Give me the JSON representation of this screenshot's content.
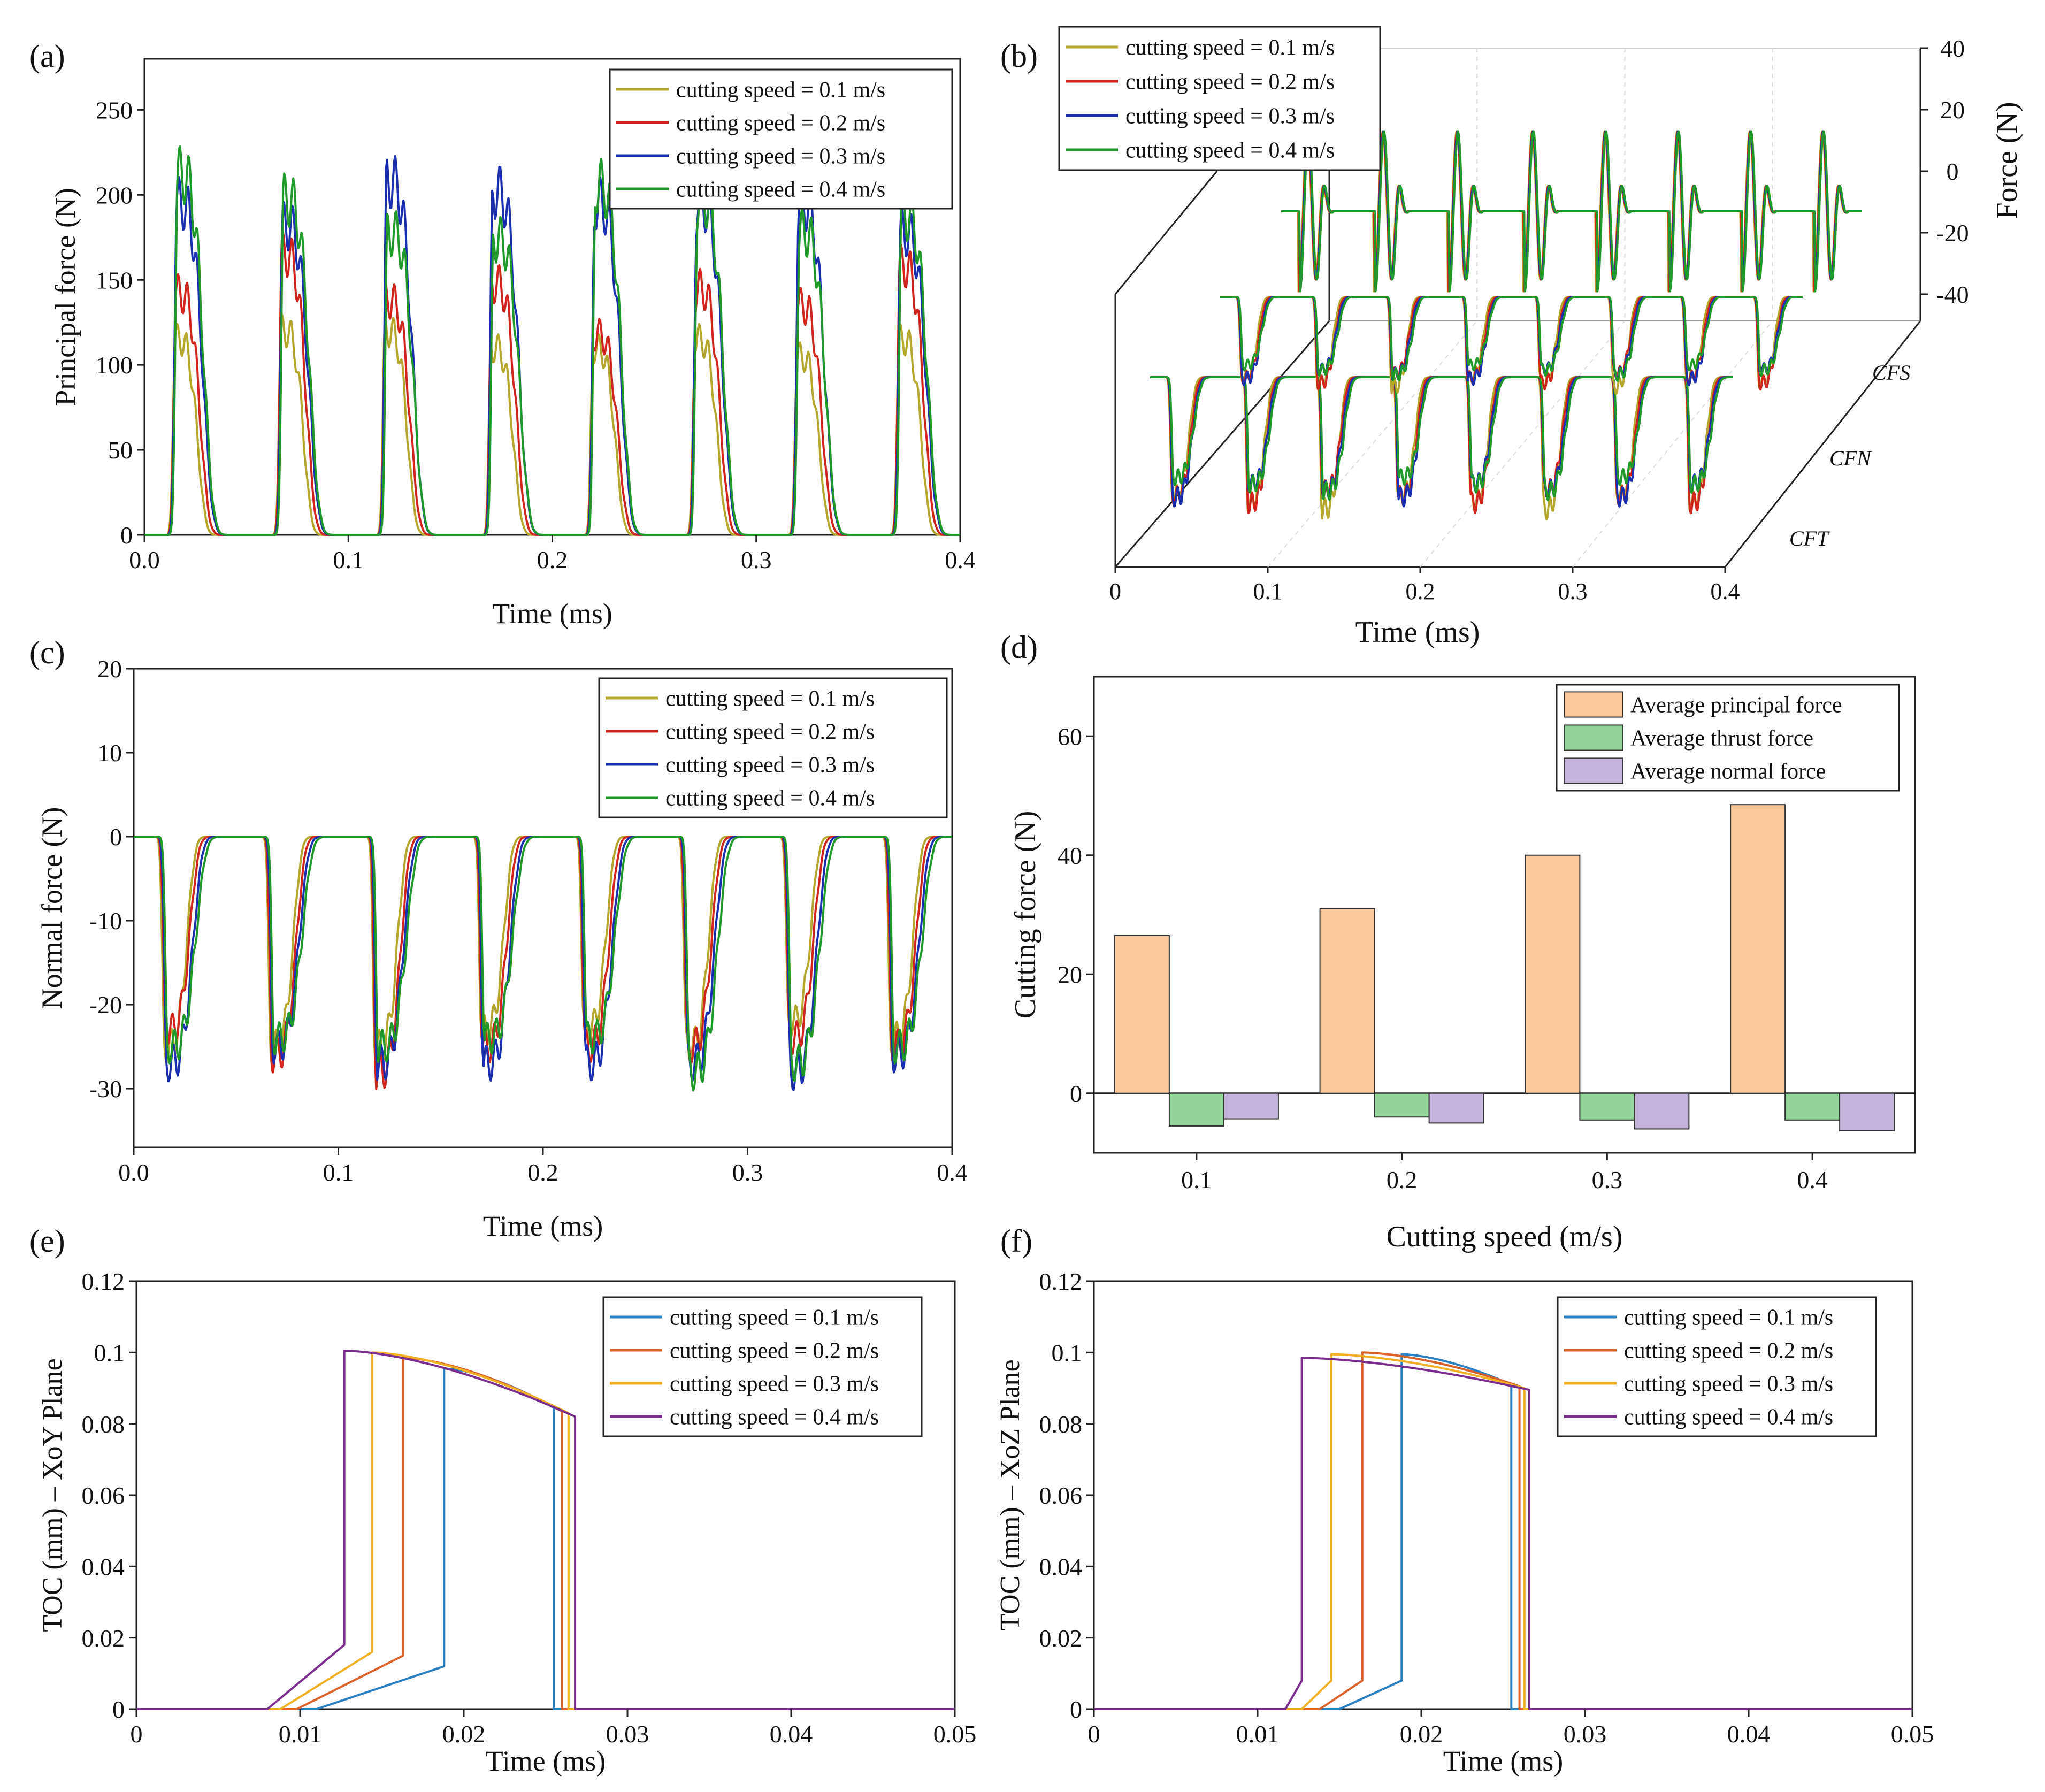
{
  "panels": {
    "a": {
      "label": "(a)"
    },
    "b": {
      "label": "(b)"
    },
    "c": {
      "label": "(c)"
    },
    "d": {
      "label": "(d)"
    },
    "e": {
      "label": "(e)"
    },
    "f": {
      "label": "(f)"
    }
  },
  "colors": {
    "speed_force": [
      "#b5a72c",
      "#d0241c",
      "#1a2fb0",
      "#1f9a2a"
    ],
    "speed_toc": [
      "#2a7fc0",
      "#d9622b",
      "#f2b124",
      "#7b2d8e"
    ],
    "bars": [
      "#fbc89b",
      "#92d49a",
      "#c4b4dc"
    ]
  },
  "chart_data": [
    {
      "id": "a",
      "type": "line",
      "title": "",
      "xlabel": "Time (ms)",
      "ylabel": "Principal force (N)",
      "xlim": [
        0,
        0.4
      ],
      "ylim": [
        0,
        280
      ],
      "xticks": [
        "0.0",
        "0.1",
        "0.2",
        "0.3",
        "0.4"
      ],
      "yticks": [
        "0",
        "50",
        "100",
        "150",
        "200",
        "250"
      ],
      "legend_position": "top-right",
      "peak_times": [
        0.015,
        0.067,
        0.118,
        0.17,
        0.22,
        0.27,
        0.32,
        0.37
      ],
      "series": [
        {
          "name": "cutting speed = 0.1 m/s",
          "peak_values": [
            115,
            120,
            120,
            110,
            110,
            115,
            105,
            115
          ]
        },
        {
          "name": "cutting speed = 0.2 m/s",
          "peak_values": [
            142,
            165,
            138,
            148,
            118,
            145,
            135,
            158
          ]
        },
        {
          "name": "cutting speed = 0.3 m/s",
          "peak_values": [
            195,
            182,
            208,
            202,
            195,
            195,
            195,
            178
          ]
        },
        {
          "name": "cutting speed = 0.4 m/s",
          "peak_values": [
            212,
            197,
            178,
            174,
            205,
            198,
            178,
            188
          ]
        }
      ]
    },
    {
      "id": "b",
      "type": "line",
      "title": "",
      "xlabel": "Time (ms)",
      "zlabel": "Force (N)",
      "xlim": [
        0,
        0.4
      ],
      "zlim": [
        -40,
        40
      ],
      "xticks": [
        "0",
        "0.1",
        "0.2",
        "0.3",
        "0.4"
      ],
      "zticks": [
        "40",
        "20",
        "0",
        "-20",
        "-40"
      ],
      "depth_labels": [
        "CFS",
        "CFN",
        "CFT"
      ],
      "legend_position": "top-left",
      "peak_times": [
        0.015,
        0.067,
        0.118,
        0.17,
        0.22,
        0.27,
        0.32,
        0.37
      ],
      "series": [
        {
          "name": "cutting speed = 0.1 m/s"
        },
        {
          "name": "cutting speed = 0.2 m/s"
        },
        {
          "name": "cutting speed = 0.3 m/s"
        },
        {
          "name": "cutting speed = 0.4 m/s"
        }
      ]
    },
    {
      "id": "c",
      "type": "line",
      "title": "",
      "xlabel": "Time (ms)",
      "ylabel": "Normal force (N)",
      "xlim": [
        0,
        0.4
      ],
      "ylim": [
        -37,
        20
      ],
      "xticks": [
        "0.0",
        "0.1",
        "0.2",
        "0.3",
        "0.4"
      ],
      "yticks": [
        "20",
        "10",
        "0",
        "-10",
        "-20",
        "-30"
      ],
      "legend_position": "top-right",
      "peak_times": [
        0.015,
        0.067,
        0.118,
        0.17,
        0.22,
        0.27,
        0.32,
        0.37
      ],
      "series": [
        {
          "name": "cutting speed = 0.1 m/s",
          "min_values": [
            -25,
            -25,
            -25,
            -23,
            -23,
            -25,
            -22,
            -24
          ]
        },
        {
          "name": "cutting speed = 0.2 m/s",
          "min_values": [
            -23,
            -26,
            -28,
            -25,
            -25,
            -25,
            -24,
            -25
          ]
        },
        {
          "name": "cutting speed = 0.3 m/s",
          "min_values": [
            -27,
            -25,
            -27,
            -27,
            -27,
            -27,
            -28,
            -26
          ]
        },
        {
          "name": "cutting speed = 0.4 m/s",
          "min_values": [
            -25,
            -24,
            -25,
            -24,
            -24,
            -28,
            -27,
            -25
          ]
        }
      ]
    },
    {
      "id": "d",
      "type": "bar",
      "title": "",
      "xlabel": "Cutting speed (m/s)",
      "ylabel": "Cutting force (N)",
      "categories": [
        "0.1",
        "0.2",
        "0.3",
        "0.4"
      ],
      "ylim": [
        -10,
        70
      ],
      "yticks": [
        "0",
        "20",
        "40",
        "60"
      ],
      "legend_position": "top-right",
      "series": [
        {
          "name": "Average principal  force",
          "values": [
            26.5,
            31,
            40,
            48.5
          ]
        },
        {
          "name": "Average thrust force",
          "values": [
            -5.5,
            -4,
            -4.5,
            -4.5
          ]
        },
        {
          "name": "Average normal force",
          "values": [
            -4.3,
            -5,
            -6,
            -6.3
          ]
        }
      ]
    },
    {
      "id": "e",
      "type": "line",
      "title": "",
      "xlabel": "Time  (ms)",
      "ylabel": "TOC (mm) – XoY Plane",
      "xlim": [
        0,
        0.05
      ],
      "ylim": [
        0,
        0.12
      ],
      "xticks": [
        "0",
        "0.01",
        "0.02",
        "0.03",
        "0.04",
        "0.05"
      ],
      "yticks": [
        "0",
        "0.02",
        "0.04",
        "0.06",
        "0.08",
        "0.1",
        "0.12"
      ],
      "legend_position": "top-right",
      "series": [
        {
          "name": "cutting speed = 0.1 m/s",
          "x": [
            0,
            0.011,
            0.0188,
            0.0188,
            0.0255,
            0.0255,
            0.05
          ],
          "y": [
            0,
            0,
            0.012,
            0.0955,
            0.0845,
            0,
            0
          ]
        },
        {
          "name": "cutting speed = 0.2 m/s",
          "x": [
            0,
            0.0098,
            0.0163,
            0.0163,
            0.026,
            0.026,
            0.05
          ],
          "y": [
            0,
            0,
            0.015,
            0.0985,
            0.0835,
            0,
            0
          ]
        },
        {
          "name": "cutting speed = 0.3 m/s",
          "x": [
            0,
            0.0088,
            0.0144,
            0.0144,
            0.0264,
            0.0264,
            0.05
          ],
          "y": [
            0,
            0,
            0.016,
            0.1,
            0.083,
            0,
            0
          ]
        },
        {
          "name": "cutting speed = 0.4 m/s",
          "x": [
            0,
            0.008,
            0.0127,
            0.0127,
            0.0268,
            0.0268,
            0.05
          ],
          "y": [
            0,
            0,
            0.018,
            0.1005,
            0.082,
            0,
            0
          ]
        }
      ]
    },
    {
      "id": "f",
      "type": "line",
      "title": "",
      "xlabel": "Time (ms)",
      "ylabel": "TOC (mm) – XoZ Plane",
      "xlim": [
        0,
        0.05
      ],
      "ylim": [
        0,
        0.12
      ],
      "xticks": [
        "0",
        "0.01",
        "0.02",
        "0.03",
        "0.04",
        "0.05"
      ],
      "yticks": [
        "0",
        "0.02",
        "0.04",
        "0.06",
        "0.08",
        "0.1",
        "0.12"
      ],
      "legend_position": "top-right",
      "series": [
        {
          "name": "cutting speed = 0.1 m/s",
          "x": [
            0,
            0.015,
            0.0188,
            0.0188,
            0.0255,
            0.0255,
            0.05
          ],
          "y": [
            0,
            0,
            0.008,
            0.0995,
            0.091,
            0,
            0
          ]
        },
        {
          "name": "cutting speed = 0.2 m/s",
          "x": [
            0,
            0.0138,
            0.0164,
            0.0164,
            0.026,
            0.026,
            0.05
          ],
          "y": [
            0,
            0,
            0.008,
            0.1,
            0.0905,
            0,
            0
          ]
        },
        {
          "name": "cutting speed = 0.3 m/s",
          "x": [
            0,
            0.0127,
            0.0145,
            0.0145,
            0.0263,
            0.0263,
            0.05
          ],
          "y": [
            0,
            0,
            0.008,
            0.0995,
            0.09,
            0,
            0
          ]
        },
        {
          "name": "cutting speed = 0.4 m/s",
          "x": [
            0,
            0.0117,
            0.0127,
            0.0127,
            0.0266,
            0.0266,
            0.05
          ],
          "y": [
            0,
            0,
            0.008,
            0.0985,
            0.0895,
            0,
            0
          ]
        }
      ]
    }
  ]
}
